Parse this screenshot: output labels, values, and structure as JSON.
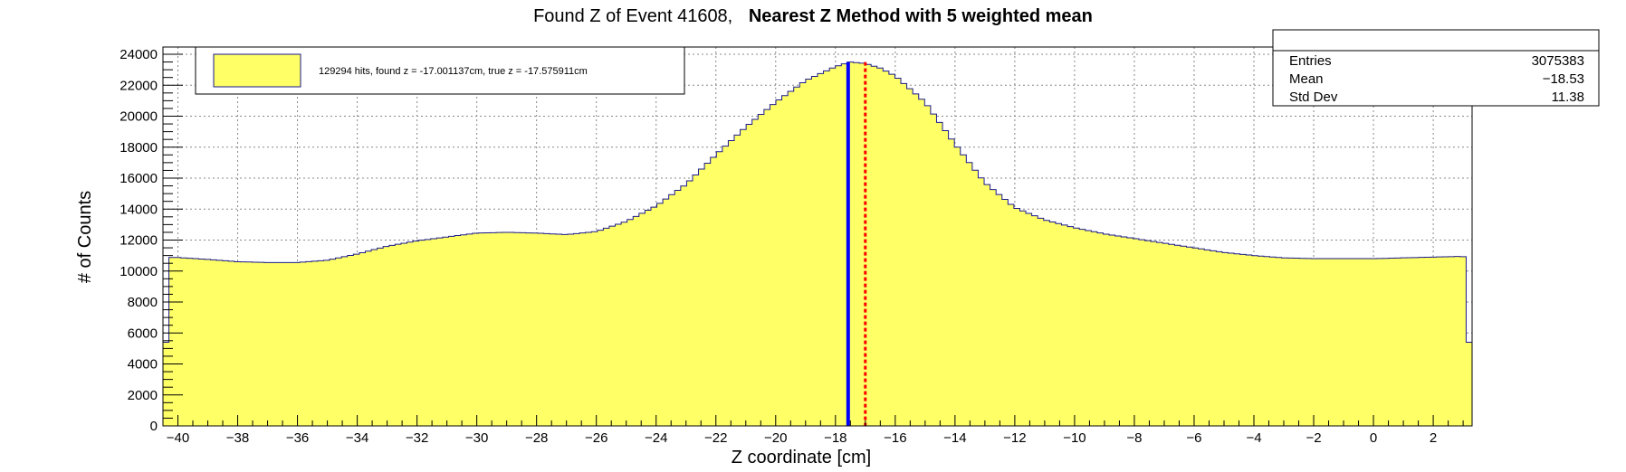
{
  "title": {
    "prefix": "Found Z of Event 41608,",
    "bold": "Nearest Z Method with 5 weighted mean"
  },
  "stats": {
    "entries_label": "Entries",
    "entries_value": "3075383",
    "mean_label": "Mean",
    "mean_value": "−18.53",
    "stddev_label": "Std Dev",
    "stddev_value": "11.38"
  },
  "legend": {
    "text": "129294 hits, found z = -17.001137cm, true z = -17.575911cm"
  },
  "chart_data": {
    "type": "bar",
    "xlabel": "Z coordinate [cm]",
    "ylabel": "# of Counts",
    "xlim": [
      -40.5,
      3.3
    ],
    "ylim": [
      0,
      24000
    ],
    "x_ticks": [
      -40,
      -38,
      -36,
      -34,
      -32,
      -30,
      -28,
      -26,
      -24,
      -22,
      -20,
      -18,
      -16,
      -14,
      -12,
      -10,
      -8,
      -6,
      -4,
      -2,
      0,
      2
    ],
    "y_ticks": [
      0,
      2000,
      4000,
      6000,
      8000,
      10000,
      12000,
      14000,
      16000,
      18000,
      20000,
      22000,
      24000
    ],
    "grid": true,
    "fill_color": "#ffff66",
    "line_color": "#1a1a8c",
    "profile_points": [
      [
        -40.5,
        5400
      ],
      [
        -40.2,
        10900
      ],
      [
        -39.0,
        10750
      ],
      [
        -38.0,
        10600
      ],
      [
        -37.0,
        10550
      ],
      [
        -36.0,
        10550
      ],
      [
        -35.0,
        10700
      ],
      [
        -34.0,
        11100
      ],
      [
        -33.0,
        11600
      ],
      [
        -32.0,
        11950
      ],
      [
        -31.0,
        12200
      ],
      [
        -30.0,
        12450
      ],
      [
        -29.0,
        12500
      ],
      [
        -28.0,
        12450
      ],
      [
        -27.0,
        12350
      ],
      [
        -26.0,
        12550
      ],
      [
        -25.0,
        13200
      ],
      [
        -24.0,
        14200
      ],
      [
        -23.0,
        15600
      ],
      [
        -22.0,
        17500
      ],
      [
        -21.0,
        19300
      ],
      [
        -20.0,
        20900
      ],
      [
        -19.0,
        22300
      ],
      [
        -18.0,
        23200
      ],
      [
        -17.5,
        23500
      ],
      [
        -17.0,
        23400
      ],
      [
        -16.5,
        23100
      ],
      [
        -16.0,
        22600
      ],
      [
        -15.0,
        20900
      ],
      [
        -14.0,
        18200
      ],
      [
        -13.0,
        15700
      ],
      [
        -12.0,
        14100
      ],
      [
        -11.0,
        13300
      ],
      [
        -10.0,
        12800
      ],
      [
        -9.0,
        12400
      ],
      [
        -8.0,
        12100
      ],
      [
        -7.0,
        11800
      ],
      [
        -6.0,
        11500
      ],
      [
        -5.0,
        11200
      ],
      [
        -4.0,
        11000
      ],
      [
        -3.0,
        10850
      ],
      [
        -2.0,
        10800
      ],
      [
        -1.0,
        10800
      ],
      [
        0.0,
        10800
      ],
      [
        1.0,
        10850
      ],
      [
        2.0,
        10900
      ],
      [
        3.0,
        10950
      ],
      [
        3.3,
        5400
      ]
    ],
    "true_z": -17.575911,
    "found_z": -17.001137,
    "true_z_color": "#0000ff",
    "found_z_color": "#ff0000"
  }
}
